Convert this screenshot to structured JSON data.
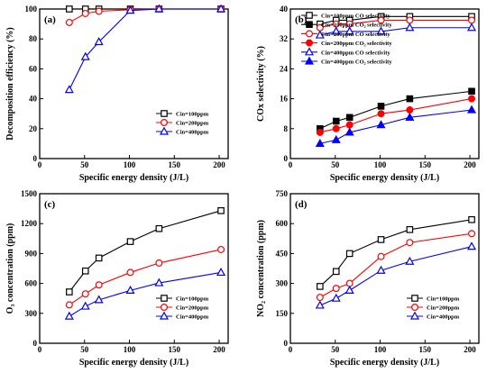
{
  "chart_data": [
    {
      "type": "line",
      "panel_label": "(a)",
      "xlabel": "Specific energy density (J/L)",
      "ylabel": "Decomposition efficiency (%)",
      "xlim": [
        0,
        210
      ],
      "ylim": [
        0,
        100
      ],
      "xticks": [
        0,
        50,
        100,
        150,
        200
      ],
      "yticks": [
        0,
        20,
        40,
        60,
        80,
        100
      ],
      "legend_position": "bottom-right",
      "series": [
        {
          "name": "Cin=100ppm",
          "color": "#000000",
          "marker": "square",
          "fill": "open",
          "x": [
            33,
            51,
            66,
            101,
            133,
            202
          ],
          "y": [
            100,
            100,
            100,
            100,
            100,
            100
          ]
        },
        {
          "name": "Cin=200ppm",
          "color": "#ff0000",
          "marker": "circle",
          "fill": "open",
          "x": [
            33,
            51,
            66,
            101,
            133,
            202
          ],
          "y": [
            91,
            97,
            98.5,
            99.5,
            100,
            100
          ]
        },
        {
          "name": "Cin=400ppm",
          "color": "#0000ff",
          "marker": "triangle",
          "fill": "open",
          "x": [
            33,
            51,
            66,
            101,
            133,
            202
          ],
          "y": [
            46,
            68,
            78,
            99,
            100,
            100
          ]
        }
      ]
    },
    {
      "type": "line",
      "panel_label": "(b)",
      "xlabel": "Specific energy density (J/L)",
      "ylabel": "COx selectivity (%)",
      "xlim": [
        0,
        210
      ],
      "ylim": [
        0,
        40
      ],
      "xticks": [
        0,
        50,
        100,
        150,
        200
      ],
      "yticks": [
        0,
        8,
        16,
        24,
        32,
        40
      ],
      "legend_position": "top",
      "series": [
        {
          "name": "Cin=100ppm  CO  selectivity",
          "color": "#000000",
          "marker": "square",
          "fill": "open",
          "x": [
            33,
            51,
            66,
            101,
            133,
            202
          ],
          "y": [
            36,
            37,
            37,
            38,
            38,
            38
          ]
        },
        {
          "name": "Cin=100ppm  CO₂ selectivity",
          "color": "#000000",
          "marker": "square",
          "fill": "filled",
          "x": [
            33,
            51,
            66,
            101,
            133,
            202
          ],
          "y": [
            8,
            10,
            11,
            14,
            16,
            18
          ]
        },
        {
          "name": "Cin=200ppm  CO  selectivity",
          "color": "#ff0000",
          "marker": "circle",
          "fill": "open",
          "x": [
            33,
            51,
            66,
            101,
            133,
            202
          ],
          "y": [
            35,
            36,
            36,
            37,
            37,
            37
          ]
        },
        {
          "name": "Cin=200ppm  CO₂ selectivity",
          "color": "#ff0000",
          "marker": "circle",
          "fill": "filled",
          "x": [
            33,
            51,
            66,
            101,
            133,
            202
          ],
          "y": [
            7,
            8,
            9,
            12,
            13,
            16
          ]
        },
        {
          "name": "Cin=400ppm  CO  selectivity",
          "color": "#0000ff",
          "marker": "triangle",
          "fill": "open",
          "x": [
            33,
            51,
            66,
            101,
            133,
            202
          ],
          "y": [
            33,
            34,
            34,
            34,
            35,
            35
          ]
        },
        {
          "name": "Cin=400ppm  CO₂ selectivity",
          "color": "#0000ff",
          "marker": "triangle",
          "fill": "filled",
          "x": [
            33,
            51,
            66,
            101,
            133,
            202
          ],
          "y": [
            4,
            5,
            7,
            9,
            11,
            13
          ]
        }
      ]
    },
    {
      "type": "line",
      "panel_label": "(c)",
      "xlabel": "Specific energy density (J/L)",
      "ylabel": "O₃ concentration (ppm)",
      "xlim": [
        0,
        210
      ],
      "ylim": [
        0,
        1500
      ],
      "xticks": [
        0,
        50,
        100,
        150,
        200
      ],
      "yticks": [
        0,
        300,
        600,
        900,
        1200,
        1500
      ],
      "legend_position": "bottom-right",
      "series": [
        {
          "name": "Cin=100ppm",
          "color": "#000000",
          "marker": "square",
          "fill": "open",
          "x": [
            33,
            51,
            66,
            101,
            133,
            202
          ],
          "y": [
            515,
            725,
            855,
            1020,
            1150,
            1330
          ]
        },
        {
          "name": "Cin=200ppm",
          "color": "#ff0000",
          "marker": "circle",
          "fill": "open",
          "x": [
            33,
            51,
            66,
            101,
            133,
            202
          ],
          "y": [
            385,
            495,
            585,
            710,
            805,
            940
          ]
        },
        {
          "name": "Cin=400ppm",
          "color": "#0000ff",
          "marker": "triangle",
          "fill": "open",
          "x": [
            33,
            51,
            66,
            101,
            133,
            202
          ],
          "y": [
            270,
            370,
            435,
            530,
            605,
            710
          ]
        }
      ]
    },
    {
      "type": "line",
      "panel_label": "(d)",
      "xlabel": "Specific energy density (J/L)",
      "ylabel": "NO₂ concentration (ppm)",
      "xlim": [
        0,
        210
      ],
      "ylim": [
        0,
        750
      ],
      "xticks": [
        0,
        50,
        100,
        150,
        200
      ],
      "yticks": [
        0,
        150,
        300,
        450,
        600,
        750
      ],
      "legend_position": "bottom-right",
      "series": [
        {
          "name": "Cin=100ppm",
          "color": "#000000",
          "marker": "square",
          "fill": "open",
          "x": [
            33,
            51,
            66,
            101,
            133,
            202
          ],
          "y": [
            285,
            360,
            450,
            520,
            570,
            620
          ]
        },
        {
          "name": "Cin=200ppm",
          "color": "#ff0000",
          "marker": "circle",
          "fill": "open",
          "x": [
            33,
            51,
            66,
            101,
            133,
            202
          ],
          "y": [
            230,
            275,
            300,
            435,
            505,
            550
          ]
        },
        {
          "name": "Cin=400ppm",
          "color": "#0000ff",
          "marker": "triangle",
          "fill": "open",
          "x": [
            33,
            51,
            66,
            101,
            133,
            202
          ],
          "y": [
            190,
            225,
            265,
            365,
            410,
            485
          ]
        }
      ]
    }
  ]
}
